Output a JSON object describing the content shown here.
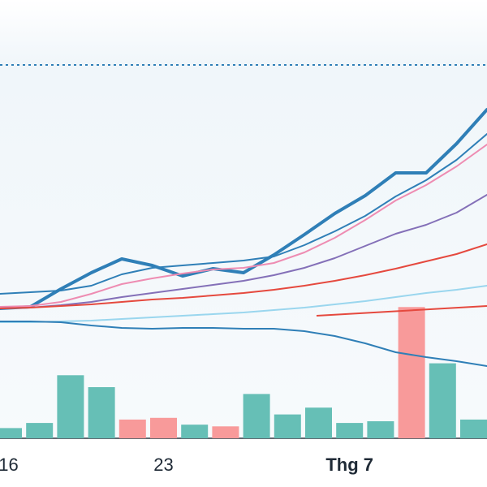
{
  "chart_data": {
    "type": "line",
    "title": "",
    "xlabel": "",
    "ylabel": "",
    "grid": false,
    "legend": "none",
    "x_tick_labels": [
      {
        "label": "16",
        "bar_index": 0,
        "bold": false
      },
      {
        "label": "23",
        "bar_index": 5,
        "bold": false
      },
      {
        "label": "Thg 7",
        "bar_index": 11,
        "bold": true
      }
    ],
    "bars": {
      "colors": {
        "up": "#66bfb6",
        "down": "#f89a9a"
      },
      "values": [
        0.06,
        0.09,
        0.37,
        0.3,
        0.11,
        0.12,
        0.08,
        0.07,
        0.26,
        0.14,
        0.18,
        0.09,
        0.1,
        0.77,
        0.44,
        0.11
      ],
      "direction": [
        "up",
        "up",
        "up",
        "up",
        "down",
        "down",
        "up",
        "down",
        "up",
        "up",
        "up",
        "up",
        "up",
        "down",
        "up",
        "up"
      ]
    },
    "price_x": [
      0,
      1,
      2,
      3,
      4,
      5,
      6,
      7,
      8,
      9,
      10,
      11,
      12,
      13,
      14,
      15,
      16
    ],
    "series": [
      {
        "color": "#2f7fb7",
        "width": 4,
        "values": [
          380,
          378,
          356,
          336,
          319,
          327,
          340,
          331,
          336,
          314,
          289,
          263,
          241,
          213,
          213,
          177,
          135
        ]
      },
      {
        "color": "#2f7fb7",
        "width": 2,
        "values": [
          362,
          360,
          358,
          352,
          338,
          330,
          327,
          324,
          321,
          316,
          302,
          285,
          266,
          242,
          222,
          197,
          165
        ]
      },
      {
        "color": "#ee8cb2",
        "width": 2,
        "values": [
          378,
          377,
          372,
          362,
          350,
          343,
          337,
          332,
          330,
          324,
          311,
          293,
          271,
          247,
          228,
          205,
          178
        ]
      },
      {
        "color": "#8470b8",
        "width": 2,
        "values": [
          380,
          379,
          376,
          372,
          366,
          361,
          356,
          351,
          346,
          339,
          330,
          318,
          303,
          288,
          277,
          262,
          240
        ]
      },
      {
        "color": "#e5493e",
        "width": 2,
        "values": [
          380,
          379,
          377,
          375,
          372,
          369,
          367,
          364,
          361,
          357,
          352,
          346,
          339,
          331,
          322,
          313,
          301
        ]
      },
      {
        "color": "#9ad6ee",
        "width": 2,
        "values": [
          397,
          397,
          396,
          395,
          393,
          391,
          389,
          387,
          385,
          382,
          379,
          375,
          371,
          366,
          361,
          357,
          352
        ]
      },
      {
        "color": "#2f7fb7",
        "width": 2,
        "values": [
          396,
          396,
          397,
          401,
          404,
          405,
          404,
          404,
          405,
          405,
          408,
          414,
          423,
          434,
          440,
          445,
          451
        ]
      }
    ],
    "short_segment": {
      "color": "#e5493e",
      "start_x": 10.4,
      "start_y": 389,
      "end_x": 16,
      "end_y": 377
    },
    "reference_line": {
      "y": 80,
      "color": "#2f7fb7",
      "style": "dotted"
    }
  }
}
